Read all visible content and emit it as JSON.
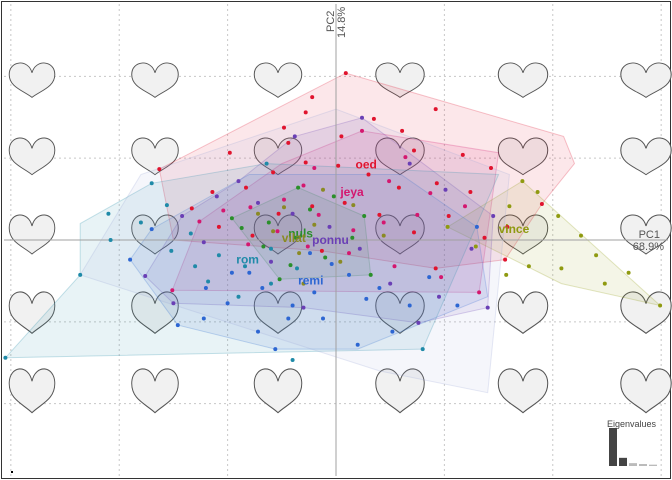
{
  "chart_data": {
    "type": "scatter",
    "title": "",
    "xlabel": "PC1",
    "xlabel_pct": "68.9%",
    "ylabel": "PC2",
    "ylabel_pct": "14.8%",
    "xlim": [
      -0.31,
      0.31
    ],
    "ylim": [
      -0.22,
      0.22
    ],
    "grid": true,
    "grid_x": [
      -0.3,
      -0.2,
      -0.1,
      0.1,
      0.2,
      0.3
    ],
    "grid_y": [
      0.15,
      0.075,
      -0.075,
      -0.15
    ],
    "background_shapes": "heart-outline",
    "series": [
      {
        "name": "oed",
        "color": "#e0142e",
        "label_at": [
          0.018,
          0.069
        ],
        "points": [
          [
            0.009,
            0.153
          ],
          [
            -0.022,
            0.131
          ],
          [
            -0.048,
            0.103
          ],
          [
            -0.028,
            0.117
          ],
          [
            0.005,
            0.095
          ],
          [
            0.035,
            0.111
          ],
          [
            0.061,
            0.1
          ],
          [
            0.092,
            0.12
          ],
          [
            0.117,
            0.078
          ],
          [
            0.143,
            0.066
          ],
          [
            0.19,
            0.033
          ],
          [
            0.158,
            0.012
          ],
          [
            0.124,
            0.044
          ],
          [
            0.093,
            0.052
          ],
          [
            0.058,
            0.048
          ],
          [
            0.03,
            0.06
          ],
          [
            0.002,
            0.068
          ],
          [
            -0.028,
            0.071
          ],
          [
            -0.058,
            0.062
          ],
          [
            -0.083,
            0.048
          ],
          [
            -0.114,
            0.044
          ],
          [
            -0.133,
            0.029
          ],
          [
            -0.108,
            0.012
          ],
          [
            -0.077,
            0.004
          ],
          [
            -0.053,
            0.024
          ],
          [
            -0.022,
            0.031
          ],
          [
            0.008,
            0.034
          ],
          [
            0.04,
            0.023
          ],
          [
            0.072,
            0.007
          ],
          [
            0.104,
            0.022
          ],
          [
            0.137,
            0.002
          ],
          [
            0.092,
            -0.026
          ],
          [
            -0.013,
            -0.01
          ],
          [
            -0.163,
            0.065
          ],
          [
            -0.098,
            0.08
          ],
          [
            0.156,
            -0.018
          ],
          [
            -0.044,
            0.089
          ],
          [
            0.072,
            0.082
          ]
        ]
      },
      {
        "name": "jeya",
        "color": "#d4176f",
        "label_at": [
          0.004,
          0.044
        ],
        "points": [
          [
            0.024,
            0.1
          ],
          [
            0.064,
            0.076
          ],
          [
            -0.02,
            0.066
          ],
          [
            0.049,
            0.054
          ],
          [
            0.087,
            0.043
          ],
          [
            0.119,
            0.031
          ],
          [
            0.075,
            0.023
          ],
          [
            0.044,
            0.016
          ],
          [
            0.016,
            0.009
          ],
          [
            -0.016,
            0.023
          ],
          [
            -0.048,
            0.037
          ],
          [
            -0.079,
            0.03
          ],
          [
            -0.104,
            0.027
          ],
          [
            -0.126,
            0.017
          ],
          [
            -0.081,
            -0.004
          ],
          [
            -0.054,
            0.008
          ],
          [
            -0.026,
            -0.006
          ],
          [
            0.012,
            -0.012
          ],
          [
            0.054,
            -0.024
          ],
          [
            0.097,
            -0.034
          ],
          [
            0.132,
            -0.048
          ],
          [
            -0.151,
            -0.046
          ],
          [
            -0.03,
            0.05
          ]
        ]
      },
      {
        "name": "vince",
        "color": "#8f9a10",
        "label_at": [
          0.15,
          0.01
        ],
        "points": [
          [
            0.172,
            0.054
          ],
          [
            0.186,
            0.044
          ],
          [
            0.205,
            0.022
          ],
          [
            0.226,
            0.004
          ],
          [
            0.24,
            -0.014
          ],
          [
            0.27,
            -0.03
          ],
          [
            0.299,
            -0.06
          ],
          [
            0.248,
            -0.04
          ],
          [
            0.208,
            -0.026
          ],
          [
            0.178,
            -0.024
          ],
          [
            0.157,
            -0.032
          ],
          [
            0.129,
            -0.006
          ],
          [
            0.103,
            0.012
          ],
          [
            0.16,
            0.031
          ]
        ]
      },
      {
        "name": "nuls",
        "color": "#2a8f2a",
        "label_at": [
          -0.044,
          0.006
        ],
        "points": [
          [
            -0.035,
            0.048
          ],
          [
            -0.002,
            0.04
          ],
          [
            0.026,
            0.022
          ],
          [
            0.015,
            0.002
          ],
          [
            -0.01,
            -0.016
          ],
          [
            -0.042,
            -0.023
          ],
          [
            -0.067,
            -0.006
          ],
          [
            -0.087,
            0.011
          ],
          [
            -0.062,
            0.016
          ],
          [
            -0.037,
            0.002
          ],
          [
            -0.024,
            0.028
          ],
          [
            0.032,
            -0.032
          ],
          [
            -0.052,
            -0.036
          ],
          [
            -0.096,
            0.02
          ]
        ]
      },
      {
        "name": "vilat",
        "color": "#8a8a24",
        "label_at": [
          -0.05,
          0.002
        ],
        "points": [
          [
            -0.048,
            0.03
          ],
          [
            -0.02,
            0.014
          ],
          [
            -0.034,
            -0.012
          ],
          [
            -0.058,
            0.008
          ],
          [
            0.016,
            0.032
          ],
          [
            0.004,
            -0.02
          ],
          [
            -0.072,
            0.024
          ],
          [
            0.044,
            0.004
          ],
          [
            -0.012,
            0.046
          ],
          [
            -0.03,
            -0.04
          ]
        ]
      },
      {
        "name": "ponnu",
        "color": "#6a3fb5",
        "label_at": [
          -0.022,
          0.0
        ],
        "points": [
          [
            0.024,
            0.112
          ],
          [
            -0.038,
            0.095
          ],
          [
            0.068,
            0.07
          ],
          [
            0.101,
            0.046
          ],
          [
            0.145,
            0.022
          ],
          [
            0.125,
            -0.008
          ],
          [
            0.095,
            -0.052
          ],
          [
            0.076,
            -0.076
          ],
          [
            0.05,
            -0.04
          ],
          [
            0.022,
            -0.008
          ],
          [
            -0.006,
            0.012
          ],
          [
            -0.04,
            0.024
          ],
          [
            -0.072,
            0.034
          ],
          [
            -0.11,
            0.04
          ],
          [
            -0.142,
            0.022
          ],
          [
            -0.122,
            -0.002
          ],
          [
            -0.176,
            -0.033
          ],
          [
            -0.15,
            -0.058
          ],
          [
            -0.03,
            -0.062
          ],
          [
            0.14,
            -0.062
          ],
          [
            -0.09,
            0.054
          ],
          [
            -0.06,
            -0.02
          ]
        ]
      },
      {
        "name": "remi",
        "color": "#2d66d2",
        "label_at": [
          -0.035,
          -0.037
        ],
        "points": [
          [
            -0.1,
            -0.058
          ],
          [
            -0.072,
            -0.084
          ],
          [
            -0.044,
            -0.072
          ],
          [
            -0.02,
            -0.048
          ],
          [
            0.012,
            -0.032
          ],
          [
            0.04,
            -0.044
          ],
          [
            0.068,
            -0.06
          ],
          [
            0.052,
            -0.084
          ],
          [
            0.02,
            -0.096
          ],
          [
            -0.012,
            -0.072
          ],
          [
            -0.04,
            -0.06
          ],
          [
            -0.068,
            -0.044
          ],
          [
            -0.096,
            -0.03
          ],
          [
            -0.122,
            -0.072
          ],
          [
            -0.146,
            -0.078
          ],
          [
            -0.12,
            -0.044
          ],
          [
            -0.004,
            -0.022
          ],
          [
            0.028,
            -0.054
          ],
          [
            0.086,
            -0.034
          ],
          [
            -0.056,
            -0.1
          ],
          [
            -0.08,
            -0.03
          ],
          [
            0.112,
            -0.06
          ],
          [
            -0.024,
            -0.012
          ],
          [
            0.13,
            0.012
          ],
          [
            -0.19,
            -0.018
          ],
          [
            -0.17,
            0.01
          ]
        ]
      },
      {
        "name": "rom",
        "color": "#1f8aa8",
        "label_at": [
          -0.092,
          -0.018
        ],
        "points": [
          [
            -0.305,
            -0.108
          ],
          [
            -0.236,
            -0.032
          ],
          [
            -0.208,
            0.0
          ],
          [
            -0.18,
            0.016
          ],
          [
            -0.156,
            0.032
          ],
          [
            -0.134,
            0.006
          ],
          [
            -0.108,
            -0.014
          ],
          [
            -0.084,
            -0.024
          ],
          [
            -0.06,
            -0.008
          ],
          [
            -0.036,
            -0.026
          ],
          [
            -0.06,
            -0.04
          ],
          [
            -0.09,
            -0.052
          ],
          [
            -0.118,
            -0.038
          ],
          [
            -0.152,
            -0.01
          ],
          [
            -0.21,
            0.024
          ],
          [
            -0.17,
            0.052
          ],
          [
            -0.13,
            -0.024
          ],
          [
            -0.04,
            -0.11
          ],
          [
            0.08,
            -0.1
          ],
          [
            -0.064,
            0.07
          ]
        ]
      }
    ],
    "hulls": [
      {
        "name": "oed",
        "color": "#e0142e",
        "points": [
          [
            0.009,
            0.153
          ],
          [
            0.21,
            0.095
          ],
          [
            0.22,
            0.07
          ],
          [
            0.19,
            0.033
          ],
          [
            0.156,
            -0.018
          ],
          [
            0.092,
            -0.026
          ],
          [
            -0.013,
            -0.01
          ],
          [
            -0.15,
            0.0
          ],
          [
            -0.163,
            0.065
          ]
        ]
      },
      {
        "name": "jeya",
        "color": "#d4176f",
        "points": [
          [
            0.024,
            0.1
          ],
          [
            0.15,
            0.08
          ],
          [
            0.132,
            -0.048
          ],
          [
            -0.151,
            -0.046
          ],
          [
            -0.126,
            0.017
          ],
          [
            -0.05,
            0.07
          ]
        ]
      },
      {
        "name": "vince",
        "color": "#8f9a10",
        "points": [
          [
            0.172,
            0.054
          ],
          [
            0.299,
            -0.06
          ],
          [
            0.208,
            -0.04
          ],
          [
            0.103,
            0.012
          ]
        ]
      },
      {
        "name": "nuls",
        "color": "#2a8f2a",
        "points": [
          [
            -0.035,
            0.048
          ],
          [
            0.026,
            0.022
          ],
          [
            0.032,
            -0.032
          ],
          [
            -0.052,
            -0.036
          ],
          [
            -0.096,
            0.02
          ]
        ]
      },
      {
        "name": "ponnu",
        "color": "#6a3fb5",
        "points": [
          [
            0.024,
            0.112
          ],
          [
            0.145,
            0.022
          ],
          [
            0.14,
            -0.062
          ],
          [
            0.076,
            -0.076
          ],
          [
            -0.03,
            -0.062
          ],
          [
            -0.15,
            -0.058
          ],
          [
            -0.176,
            -0.033
          ],
          [
            -0.142,
            0.022
          ],
          [
            -0.09,
            0.054
          ],
          [
            -0.038,
            0.095
          ]
        ]
      },
      {
        "name": "remi",
        "color": "#2d66d2",
        "points": [
          [
            0.13,
            0.012
          ],
          [
            0.14,
            -0.052
          ],
          [
            0.02,
            -0.1
          ],
          [
            -0.056,
            -0.1
          ],
          [
            -0.146,
            -0.078
          ],
          [
            -0.19,
            -0.018
          ],
          [
            -0.17,
            0.01
          ],
          [
            -0.08,
            0.06
          ],
          [
            0.06,
            0.06
          ]
        ]
      },
      {
        "name": "rom",
        "color": "#1f8aa8",
        "points": [
          [
            -0.305,
            -0.108
          ],
          [
            0.08,
            -0.1
          ],
          [
            0.15,
            0.06
          ],
          [
            -0.064,
            0.07
          ],
          [
            -0.17,
            0.052
          ],
          [
            -0.236,
            0.015
          ],
          [
            -0.236,
            -0.032
          ]
        ]
      },
      {
        "name": "all",
        "color": "#9aa6d8",
        "points": [
          [
            -0.236,
            -0.032
          ],
          [
            0.04,
            -0.12
          ],
          [
            0.14,
            -0.14
          ],
          [
            0.16,
            0.06
          ],
          [
            0.0,
            0.12
          ],
          [
            -0.18,
            0.06
          ]
        ]
      }
    ],
    "eigenvalues": {
      "title": "Eigenvalues",
      "values": [
        68.9,
        14.8,
        5.2,
        3.6,
        2.4
      ]
    }
  }
}
